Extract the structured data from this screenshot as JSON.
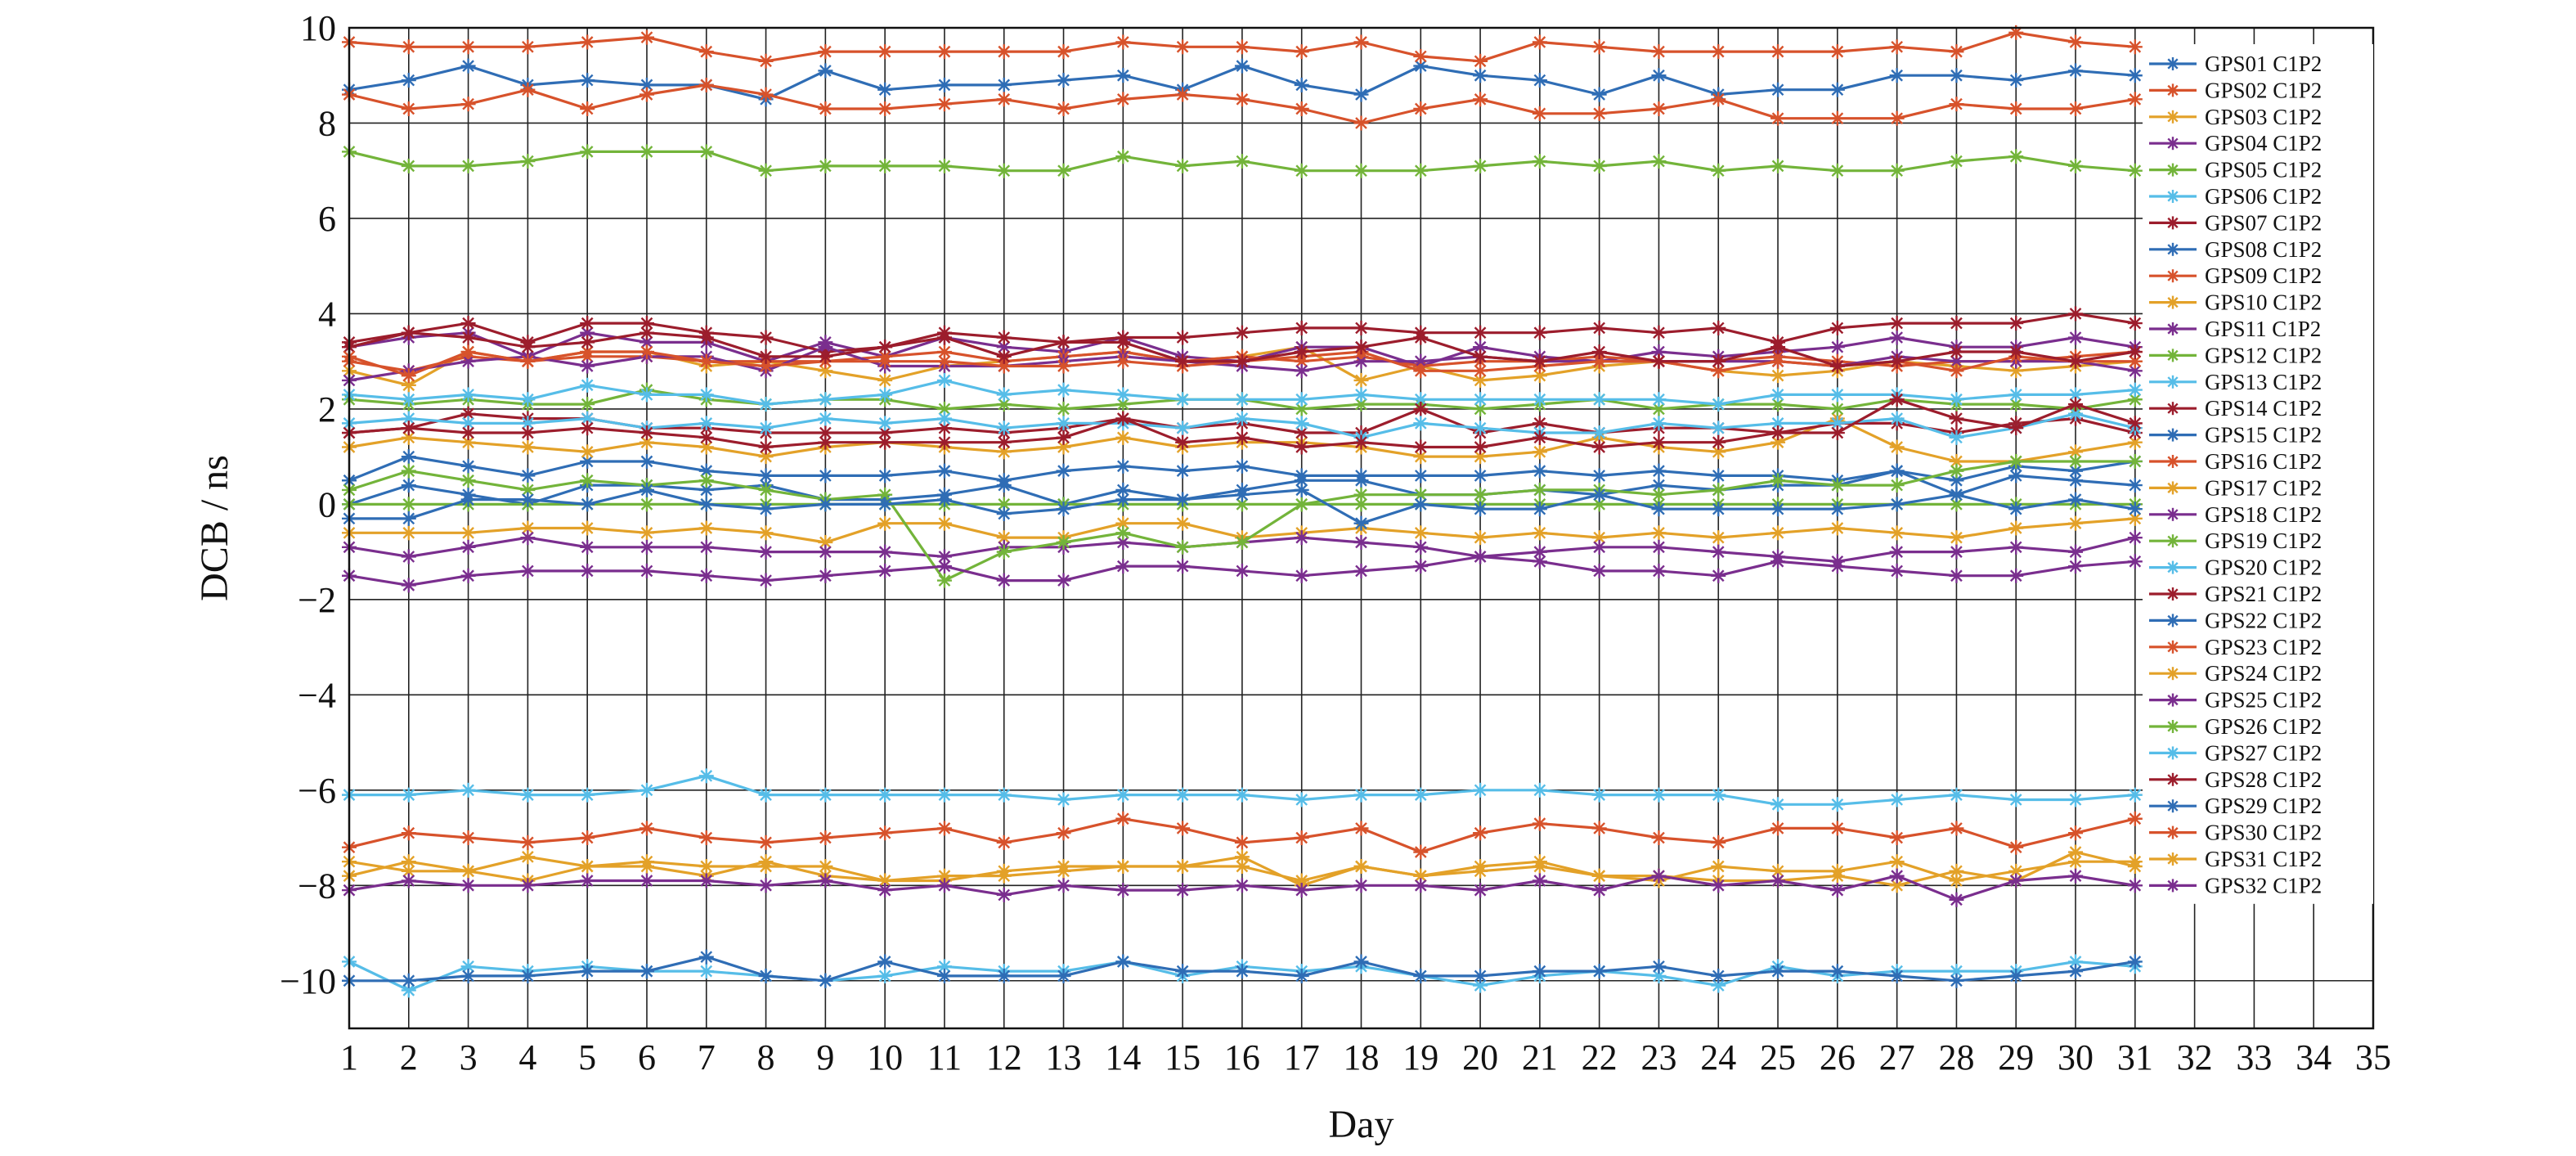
{
  "chart_data": {
    "type": "line",
    "title": "",
    "xlabel": "Day",
    "ylabel": "DCB / ns",
    "xlim": [
      1,
      35
    ],
    "ylim": [
      -11,
      10
    ],
    "xticks": [
      1,
      2,
      3,
      4,
      5,
      6,
      7,
      8,
      9,
      10,
      11,
      12,
      13,
      14,
      15,
      16,
      17,
      18,
      19,
      20,
      21,
      22,
      23,
      24,
      25,
      26,
      27,
      28,
      29,
      30,
      31,
      32,
      33,
      34,
      35
    ],
    "yticks": [
      -10,
      -8,
      -6,
      -4,
      -2,
      0,
      2,
      4,
      6,
      8,
      10
    ],
    "ytick_labels": [
      "−10",
      "−8",
      "−6",
      "−4",
      "−2",
      "0",
      "2",
      "4",
      "6",
      "8",
      "10"
    ],
    "grid": true,
    "legend_position": "right",
    "marker": "asterisk",
    "x": [
      1,
      2,
      3,
      4,
      5,
      6,
      7,
      8,
      9,
      10,
      11,
      12,
      13,
      14,
      15,
      16,
      17,
      18,
      19,
      20,
      21,
      22,
      23,
      24,
      25,
      26,
      27,
      28,
      29,
      30,
      31
    ],
    "series": [
      {
        "name": "GPS01 C1P2",
        "color": "#2f6db5",
        "values": [
          8.7,
          8.9,
          9.2,
          8.8,
          8.9,
          8.8,
          8.8,
          8.5,
          9.1,
          8.7,
          8.8,
          8.8,
          8.9,
          9.0,
          8.7,
          9.2,
          8.8,
          8.6,
          9.2,
          9.0,
          8.9,
          8.6,
          9.0,
          8.6,
          8.7,
          8.7,
          9.0,
          9.0,
          8.9,
          9.1,
          9.0
        ]
      },
      {
        "name": "GPS02 C1P2",
        "color": "#d7522b",
        "values": [
          8.6,
          8.3,
          8.4,
          8.7,
          8.3,
          8.6,
          8.8,
          8.6,
          8.3,
          8.3,
          8.4,
          8.5,
          8.3,
          8.5,
          8.6,
          8.5,
          8.3,
          8.0,
          8.3,
          8.5,
          8.2,
          8.2,
          8.3,
          8.5,
          8.1,
          8.1,
          8.1,
          8.4,
          8.3,
          8.3,
          8.5
        ]
      },
      {
        "name": "GPS03 C1P2",
        "color": "#e3a128",
        "values": [
          2.8,
          2.5,
          3.2,
          3.0,
          3.2,
          3.2,
          2.9,
          3.0,
          2.8,
          2.6,
          2.9,
          3.0,
          3.1,
          3.2,
          3.0,
          3.1,
          3.3,
          2.6,
          2.9,
          2.6,
          2.7,
          2.9,
          3.0,
          2.8,
          2.7,
          2.8,
          3.0,
          2.9,
          2.8,
          2.9,
          3.0
        ]
      },
      {
        "name": "GPS04 C1P2",
        "color": "#7a2e8e",
        "values": [
          3.3,
          3.5,
          3.6,
          3.1,
          3.6,
          3.4,
          3.4,
          3.0,
          3.4,
          3.1,
          3.5,
          3.3,
          3.2,
          3.5,
          3.1,
          3.0,
          3.3,
          3.3,
          2.9,
          3.3,
          3.1,
          3.0,
          3.2,
          3.1,
          3.2,
          3.3,
          3.5,
          3.3,
          3.3,
          3.5,
          3.3
        ]
      },
      {
        "name": "GPS05 C1P2",
        "color": "#73b43a",
        "values": [
          7.4,
          7.1,
          7.1,
          7.2,
          7.4,
          7.4,
          7.4,
          7.0,
          7.1,
          7.1,
          7.1,
          7.0,
          7.0,
          7.3,
          7.1,
          7.2,
          7.0,
          7.0,
          7.0,
          7.1,
          7.2,
          7.1,
          7.2,
          7.0,
          7.1,
          7.0,
          7.0,
          7.2,
          7.3,
          7.1,
          7.0
        ]
      },
      {
        "name": "GPS06 C1P2",
        "color": "#56bde8",
        "values": [
          -9.6,
          -10.2,
          -9.7,
          -9.8,
          -9.7,
          -9.8,
          -9.8,
          -9.9,
          -10.0,
          -9.9,
          -9.7,
          -9.8,
          -9.8,
          -9.6,
          -9.9,
          -9.7,
          -9.8,
          -9.7,
          -9.9,
          -10.1,
          -9.9,
          -9.8,
          -9.9,
          -10.1,
          -9.7,
          -9.9,
          -9.8,
          -9.8,
          -9.8,
          -9.6,
          -9.7
        ]
      },
      {
        "name": "GPS07 C1P2",
        "color": "#9c1d2c",
        "values": [
          3.3,
          3.6,
          3.8,
          3.4,
          3.8,
          3.8,
          3.6,
          3.5,
          3.2,
          3.3,
          3.6,
          3.5,
          3.4,
          3.5,
          3.5,
          3.6,
          3.7,
          3.7,
          3.6,
          3.6,
          3.6,
          3.7,
          3.6,
          3.7,
          3.4,
          3.7,
          3.8,
          3.8,
          3.8,
          4.0,
          3.8
        ]
      },
      {
        "name": "GPS08 C1P2",
        "color": "#2f6db5",
        "values": [
          0.5,
          1.0,
          0.8,
          0.6,
          0.9,
          0.9,
          0.7,
          0.6,
          0.6,
          0.6,
          0.7,
          0.5,
          0.7,
          0.8,
          0.7,
          0.8,
          0.6,
          0.6,
          0.6,
          0.6,
          0.7,
          0.6,
          0.7,
          0.6,
          0.6,
          0.5,
          0.7,
          0.5,
          0.8,
          0.7,
          0.9
        ]
      },
      {
        "name": "GPS09 C1P2",
        "color": "#d7522b",
        "values": [
          3.0,
          2.8,
          3.1,
          3.0,
          3.1,
          3.1,
          3.0,
          3.0,
          3.0,
          3.1,
          3.2,
          3.0,
          3.1,
          3.2,
          3.0,
          3.1,
          3.0,
          3.1,
          2.9,
          3.0,
          3.0,
          3.1,
          3.0,
          3.0,
          3.1,
          3.0,
          2.9,
          3.0,
          3.0,
          3.1,
          3.2
        ]
      },
      {
        "name": "GPS10 C1P2",
        "color": "#e3a128",
        "values": [
          1.2,
          1.4,
          1.3,
          1.2,
          1.1,
          1.3,
          1.2,
          1.0,
          1.2,
          1.3,
          1.2,
          1.1,
          1.2,
          1.4,
          1.2,
          1.3,
          1.3,
          1.2,
          1.0,
          1.0,
          1.1,
          1.4,
          1.2,
          1.1,
          1.3,
          1.8,
          1.2,
          0.9,
          0.9,
          1.1,
          1.3
        ]
      },
      {
        "name": "GPS11 C1P2",
        "color": "#7a2e8e",
        "values": [
          2.6,
          2.8,
          3.0,
          3.1,
          2.9,
          3.1,
          3.1,
          2.8,
          3.3,
          2.9,
          2.9,
          2.9,
          3.0,
          3.1,
          3.0,
          2.9,
          2.8,
          3.0,
          3.0,
          3.1,
          3.0,
          3.0,
          3.0,
          3.0,
          3.0,
          2.9,
          3.1,
          3.0,
          3.0,
          3.0,
          2.8
        ]
      },
      {
        "name": "GPS12 C1P2",
        "color": "#73b43a",
        "values": [
          2.2,
          2.1,
          2.2,
          2.1,
          2.1,
          2.4,
          2.2,
          2.1,
          2.2,
          2.2,
          2.0,
          2.1,
          2.0,
          2.1,
          2.2,
          2.2,
          2.0,
          2.1,
          2.1,
          2.0,
          2.1,
          2.2,
          2.0,
          2.1,
          2.1,
          2.0,
          2.2,
          2.1,
          2.1,
          2.0,
          2.2
        ]
      },
      {
        "name": "GPS13 C1P2",
        "color": "#56bde8",
        "values": [
          2.3,
          2.2,
          2.3,
          2.2,
          2.5,
          2.3,
          2.3,
          2.1,
          2.2,
          2.3,
          2.6,
          2.3,
          2.4,
          2.3,
          2.2,
          2.2,
          2.2,
          2.3,
          2.2,
          2.2,
          2.2,
          2.2,
          2.2,
          2.1,
          2.3,
          2.3,
          2.3,
          2.2,
          2.3,
          2.3,
          2.4
        ]
      },
      {
        "name": "GPS14 C1P2",
        "color": "#9c1d2c",
        "values": [
          1.5,
          1.6,
          1.9,
          1.8,
          1.8,
          1.6,
          1.6,
          1.5,
          1.5,
          1.5,
          1.6,
          1.5,
          1.6,
          1.8,
          1.6,
          1.7,
          1.5,
          1.5,
          2.0,
          1.5,
          1.7,
          1.5,
          1.6,
          1.6,
          1.5,
          1.7,
          1.7,
          1.5,
          1.7,
          1.8,
          1.5
        ]
      },
      {
        "name": "GPS15 C1P2",
        "color": "#2f6db5",
        "values": [
          0.0,
          0.4,
          0.2,
          0.0,
          0.4,
          0.4,
          0.3,
          0.4,
          0.1,
          0.1,
          0.2,
          0.4,
          0.0,
          0.3,
          0.1,
          0.3,
          0.5,
          0.5,
          0.2,
          0.2,
          0.3,
          0.2,
          0.4,
          0.3,
          0.4,
          0.4,
          0.7,
          0.2,
          0.6,
          0.5,
          0.4
        ]
      },
      {
        "name": "GPS16 C1P2",
        "color": "#d7522b",
        "values": [
          3.1,
          2.7,
          3.2,
          3.0,
          3.2,
          3.2,
          3.0,
          2.9,
          3.0,
          3.0,
          3.0,
          2.9,
          2.9,
          3.0,
          2.9,
          3.0,
          3.1,
          3.2,
          2.8,
          2.8,
          2.9,
          3.0,
          3.0,
          2.8,
          3.0,
          2.9,
          3.0,
          2.8,
          3.1,
          3.0,
          3.0
        ]
      },
      {
        "name": "GPS17 C1P2",
        "color": "#e3a128",
        "values": [
          -0.6,
          -0.6,
          -0.6,
          -0.5,
          -0.5,
          -0.6,
          -0.5,
          -0.6,
          -0.8,
          -0.4,
          -0.4,
          -0.7,
          -0.7,
          -0.4,
          -0.4,
          -0.7,
          -0.6,
          -0.5,
          -0.6,
          -0.7,
          -0.6,
          -0.7,
          -0.6,
          -0.7,
          -0.6,
          -0.5,
          -0.6,
          -0.7,
          -0.5,
          -0.4,
          -0.3
        ]
      },
      {
        "name": "GPS18 C1P2",
        "color": "#7a2e8e",
        "values": [
          -0.9,
          -1.1,
          -0.9,
          -0.7,
          -0.9,
          -0.9,
          -0.9,
          -1.0,
          -1.0,
          -1.0,
          -1.1,
          -0.9,
          -0.9,
          -0.8,
          -0.9,
          -0.8,
          -0.7,
          -0.8,
          -0.9,
          -1.1,
          -1.0,
          -0.9,
          -0.9,
          -1.0,
          -1.1,
          -1.2,
          -1.0,
          -1.0,
          -0.9,
          -1.0,
          -0.7
        ]
      },
      {
        "name": "GPS19 C1P2",
        "color": "#73b43a",
        "values": [
          0.3,
          0.7,
          0.5,
          0.3,
          0.5,
          0.4,
          0.5,
          0.3,
          0.1,
          0.2,
          -1.6,
          -1.0,
          -0.8,
          -0.6,
          -0.9,
          -0.8,
          0.0,
          0.2,
          0.2,
          0.2,
          0.3,
          0.3,
          0.2,
          0.3,
          0.5,
          0.4,
          0.4,
          0.7,
          0.9,
          0.9,
          0.9
        ]
      },
      {
        "name": "GPS20 C1P2",
        "color": "#56bde8",
        "values": [
          1.7,
          1.8,
          1.7,
          1.7,
          1.8,
          1.6,
          1.7,
          1.6,
          1.8,
          1.7,
          1.8,
          1.6,
          1.7,
          1.7,
          1.6,
          1.8,
          1.7,
          1.4,
          1.7,
          1.6,
          1.5,
          1.5,
          1.7,
          1.6,
          1.7,
          1.7,
          1.8,
          1.4,
          1.6,
          1.9,
          1.6
        ]
      },
      {
        "name": "GPS21 C1P2",
        "color": "#9c1d2c",
        "values": [
          1.5,
          1.6,
          1.5,
          1.5,
          1.6,
          1.5,
          1.4,
          1.2,
          1.3,
          1.3,
          1.3,
          1.3,
          1.4,
          1.8,
          1.3,
          1.4,
          1.2,
          1.3,
          1.2,
          1.2,
          1.4,
          1.2,
          1.3,
          1.3,
          1.5,
          1.5,
          2.2,
          1.8,
          1.6,
          2.1,
          1.7
        ]
      },
      {
        "name": "GPS22 C1P2",
        "color": "#2f6db5",
        "values": [
          -10.0,
          -10.0,
          -9.9,
          -9.9,
          -9.8,
          -9.8,
          -9.5,
          -9.9,
          -10.0,
          -9.6,
          -9.9,
          -9.9,
          -9.9,
          -9.6,
          -9.8,
          -9.8,
          -9.9,
          -9.6,
          -9.9,
          -9.9,
          -9.8,
          -9.8,
          -9.7,
          -9.9,
          -9.8,
          -9.8,
          -9.9,
          -10.0,
          -9.9,
          -9.8,
          -9.6
        ]
      },
      {
        "name": "GPS23 C1P2",
        "color": "#d7522b",
        "values": [
          9.7,
          9.6,
          9.6,
          9.6,
          9.7,
          9.8,
          9.5,
          9.3,
          9.5,
          9.5,
          9.5,
          9.5,
          9.5,
          9.7,
          9.6,
          9.6,
          9.5,
          9.7,
          9.4,
          9.3,
          9.7,
          9.6,
          9.5,
          9.5,
          9.5,
          9.5,
          9.6,
          9.5,
          9.9,
          9.7,
          9.6
        ]
      },
      {
        "name": "GPS24 C1P2",
        "color": "#e3a128",
        "values": [
          -7.5,
          -7.7,
          -7.7,
          -7.4,
          -7.6,
          -7.5,
          -7.6,
          -7.6,
          -7.6,
          -7.9,
          -7.8,
          -7.8,
          -7.7,
          -7.6,
          -7.6,
          -7.6,
          -7.9,
          -7.6,
          -7.8,
          -7.7,
          -7.6,
          -7.8,
          -7.9,
          -7.6,
          -7.7,
          -7.7,
          -7.5,
          -7.9,
          -7.7,
          -7.5,
          -7.5
        ]
      },
      {
        "name": "GPS25 C1P2",
        "color": "#7a2e8e",
        "values": [
          -1.5,
          -1.7,
          -1.5,
          -1.4,
          -1.4,
          -1.4,
          -1.5,
          -1.6,
          -1.5,
          -1.4,
          -1.3,
          -1.6,
          -1.6,
          -1.3,
          -1.3,
          -1.4,
          -1.5,
          -1.4,
          -1.3,
          -1.1,
          -1.2,
          -1.4,
          -1.4,
          -1.5,
          -1.2,
          -1.3,
          -1.4,
          -1.5,
          -1.5,
          -1.3,
          -1.2
        ]
      },
      {
        "name": "GPS26 C1P2",
        "color": "#73b43a",
        "values": [
          0.0,
          0.0,
          0.0,
          0.0,
          0.0,
          0.0,
          0.0,
          0.0,
          0.0,
          0.0,
          0.0,
          0.0,
          0.0,
          0.0,
          0.0,
          0.0,
          0.0,
          0.0,
          0.0,
          0.0,
          0.0,
          0.0,
          0.0,
          0.0,
          0.0,
          0.0,
          0.0,
          0.0,
          0.0,
          0.0,
          0.0
        ]
      },
      {
        "name": "GPS27 C1P2",
        "color": "#56bde8",
        "values": [
          -6.1,
          -6.1,
          -6.0,
          -6.1,
          -6.1,
          -6.0,
          -5.7,
          -6.1,
          -6.1,
          -6.1,
          -6.1,
          -6.1,
          -6.2,
          -6.1,
          -6.1,
          -6.1,
          -6.2,
          -6.1,
          -6.1,
          -6.0,
          -6.0,
          -6.1,
          -6.1,
          -6.1,
          -6.3,
          -6.3,
          -6.2,
          -6.1,
          -6.2,
          -6.2,
          -6.1
        ]
      },
      {
        "name": "GPS28 C1P2",
        "color": "#9c1d2c",
        "values": [
          3.4,
          3.6,
          3.5,
          3.3,
          3.4,
          3.6,
          3.5,
          3.1,
          3.1,
          3.3,
          3.5,
          3.1,
          3.4,
          3.4,
          3.0,
          3.0,
          3.2,
          3.3,
          3.5,
          3.1,
          3.0,
          3.2,
          3.0,
          3.0,
          3.3,
          2.9,
          3.0,
          3.2,
          3.2,
          3.0,
          3.2
        ]
      },
      {
        "name": "GPS29 C1P2",
        "color": "#2f6db5",
        "values": [
          -0.3,
          -0.3,
          0.1,
          0.1,
          0.0,
          0.3,
          0.0,
          -0.1,
          0.0,
          0.0,
          0.1,
          -0.2,
          -0.1,
          0.1,
          0.1,
          0.2,
          0.3,
          -0.4,
          0.0,
          -0.1,
          -0.1,
          0.2,
          -0.1,
          -0.1,
          -0.1,
          -0.1,
          0.0,
          0.2,
          -0.1,
          0.1,
          -0.1
        ]
      },
      {
        "name": "GPS30 C1P2",
        "color": "#d7522b",
        "values": [
          -7.2,
          -6.9,
          -7.0,
          -7.1,
          -7.0,
          -6.8,
          -7.0,
          -7.1,
          -7.0,
          -6.9,
          -6.8,
          -7.1,
          -6.9,
          -6.6,
          -6.8,
          -7.1,
          -7.0,
          -6.8,
          -7.3,
          -6.9,
          -6.7,
          -6.8,
          -7.0,
          -7.1,
          -6.8,
          -6.8,
          -7.0,
          -6.8,
          -7.2,
          -6.9,
          -6.6
        ]
      },
      {
        "name": "GPS31 C1P2",
        "color": "#e3a128",
        "values": [
          -7.8,
          -7.5,
          -7.7,
          -7.9,
          -7.6,
          -7.6,
          -7.8,
          -7.5,
          -7.8,
          -7.9,
          -7.9,
          -7.7,
          -7.6,
          -7.6,
          -7.6,
          -7.4,
          -8.0,
          -7.6,
          -7.8,
          -7.6,
          -7.5,
          -7.8,
          -7.8,
          -7.9,
          -7.9,
          -7.8,
          -8.0,
          -7.7,
          -7.9,
          -7.3,
          -7.6
        ]
      },
      {
        "name": "GPS32 C1P2",
        "color": "#7a2e8e",
        "values": [
          -8.1,
          -7.9,
          -8.0,
          -8.0,
          -7.9,
          -7.9,
          -7.9,
          -8.0,
          -7.9,
          -8.1,
          -8.0,
          -8.2,
          -8.0,
          -8.1,
          -8.1,
          -8.0,
          -8.1,
          -8.0,
          -8.0,
          -8.1,
          -7.9,
          -8.1,
          -7.8,
          -8.0,
          -7.9,
          -8.1,
          -7.8,
          -8.3,
          -7.9,
          -7.8,
          -8.0
        ]
      }
    ]
  }
}
